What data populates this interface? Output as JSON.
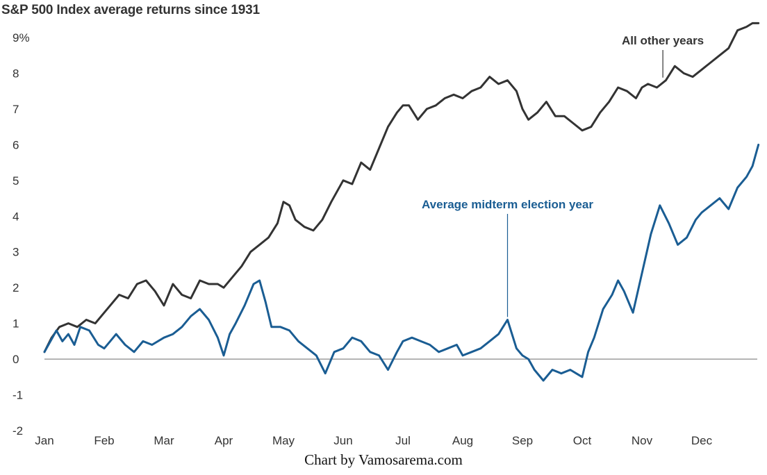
{
  "chart_data": {
    "type": "line",
    "title": "S&P 500 Index average returns since 1931",
    "source": "Chart by Vamosarema.com",
    "xlabel": "",
    "ylabel": "",
    "x_tick_labels": [
      "Jan",
      "Feb",
      "Mar",
      "Apr",
      "May",
      "Jun",
      "Jul",
      "Aug",
      "Sep",
      "Oct",
      "Nov",
      "Dec"
    ],
    "y_tick_labels": [
      "9%",
      "8",
      "7",
      "6",
      "5",
      "4",
      "3",
      "2",
      "1",
      "0",
      "-1",
      "-2"
    ],
    "y_ticks": [
      9,
      8,
      7,
      6,
      5,
      4,
      3,
      2,
      1,
      0,
      -1,
      -2
    ],
    "ylim": [
      -2,
      9
    ],
    "xlim": [
      0,
      12
    ],
    "grid": false,
    "zero_line": true,
    "series": [
      {
        "name": "All other years",
        "color": "#333333",
        "x": [
          0.0,
          0.12,
          0.25,
          0.4,
          0.55,
          0.7,
          0.85,
          1.0,
          1.1,
          1.25,
          1.4,
          1.55,
          1.7,
          1.85,
          2.0,
          2.15,
          2.3,
          2.45,
          2.6,
          2.75,
          2.9,
          3.0,
          3.15,
          3.3,
          3.45,
          3.6,
          3.75,
          3.9,
          4.0,
          4.1,
          4.2,
          4.35,
          4.5,
          4.65,
          4.8,
          5.0,
          5.15,
          5.3,
          5.45,
          5.6,
          5.75,
          5.9,
          6.0,
          6.1,
          6.25,
          6.4,
          6.55,
          6.7,
          6.85,
          7.0,
          7.15,
          7.3,
          7.45,
          7.6,
          7.75,
          7.9,
          8.0,
          8.1,
          8.25,
          8.4,
          8.55,
          8.7,
          8.85,
          9.0,
          9.15,
          9.3,
          9.45,
          9.6,
          9.75,
          9.9,
          10.0,
          10.1,
          10.25,
          10.4,
          10.55,
          10.7,
          10.85,
          11.0,
          11.15,
          11.3,
          11.45,
          11.6,
          11.75,
          11.85,
          11.95
        ],
        "y": [
          0.2,
          0.6,
          0.9,
          1.0,
          0.9,
          1.1,
          1.0,
          1.3,
          1.5,
          1.8,
          1.7,
          2.1,
          2.2,
          1.9,
          1.5,
          2.1,
          1.8,
          1.7,
          2.2,
          2.1,
          2.1,
          2.0,
          2.3,
          2.6,
          3.0,
          3.2,
          3.4,
          3.8,
          4.4,
          4.3,
          3.9,
          3.7,
          3.6,
          3.9,
          4.4,
          5.0,
          4.9,
          5.5,
          5.3,
          5.9,
          6.5,
          6.9,
          7.1,
          7.1,
          6.7,
          7.0,
          7.1,
          7.3,
          7.4,
          7.3,
          7.5,
          7.6,
          7.9,
          7.7,
          7.8,
          7.5,
          7.0,
          6.7,
          6.9,
          7.2,
          6.8,
          6.8,
          6.6,
          6.4,
          6.5,
          6.9,
          7.2,
          7.6,
          7.5,
          7.3,
          7.6,
          7.7,
          7.6,
          7.8,
          8.2,
          8.0,
          7.9,
          8.1,
          8.3,
          8.5,
          8.7,
          9.2,
          9.3,
          9.4,
          9.4
        ]
      },
      {
        "name": "Average midterm election year",
        "color": "#1a5d93",
        "x": [
          0.0,
          0.1,
          0.2,
          0.3,
          0.4,
          0.5,
          0.6,
          0.75,
          0.9,
          1.0,
          1.1,
          1.2,
          1.35,
          1.5,
          1.65,
          1.8,
          2.0,
          2.15,
          2.3,
          2.45,
          2.6,
          2.75,
          2.9,
          3.0,
          3.1,
          3.2,
          3.35,
          3.5,
          3.6,
          3.7,
          3.8,
          3.95,
          4.1,
          4.25,
          4.4,
          4.55,
          4.7,
          4.85,
          5.0,
          5.15,
          5.3,
          5.45,
          5.6,
          5.75,
          5.9,
          6.0,
          6.15,
          6.3,
          6.45,
          6.6,
          6.75,
          6.9,
          7.0,
          7.15,
          7.3,
          7.45,
          7.6,
          7.75,
          7.9,
          8.0,
          8.1,
          8.2,
          8.35,
          8.5,
          8.65,
          8.8,
          8.9,
          9.0,
          9.1,
          9.2,
          9.35,
          9.5,
          9.6,
          9.7,
          9.85,
          10.0,
          10.15,
          10.3,
          10.45,
          10.6,
          10.75,
          10.9,
          11.0,
          11.15,
          11.3,
          11.45,
          11.6,
          11.75,
          11.85,
          11.95
        ],
        "y": [
          0.2,
          0.5,
          0.8,
          0.5,
          0.7,
          0.4,
          0.9,
          0.8,
          0.4,
          0.3,
          0.5,
          0.7,
          0.4,
          0.2,
          0.5,
          0.4,
          0.6,
          0.7,
          0.9,
          1.2,
          1.4,
          1.1,
          0.6,
          0.1,
          0.7,
          1.0,
          1.5,
          2.1,
          2.2,
          1.6,
          0.9,
          0.9,
          0.8,
          0.5,
          0.3,
          0.1,
          -0.4,
          0.2,
          0.3,
          0.6,
          0.5,
          0.2,
          0.1,
          -0.3,
          0.2,
          0.5,
          0.6,
          0.5,
          0.4,
          0.2,
          0.3,
          0.4,
          0.1,
          0.2,
          0.3,
          0.5,
          0.7,
          1.1,
          0.3,
          0.1,
          0.0,
          -0.3,
          -0.6,
          -0.3,
          -0.4,
          -0.3,
          -0.4,
          -0.5,
          0.2,
          0.6,
          1.4,
          1.8,
          2.2,
          1.9,
          1.3,
          2.4,
          3.5,
          4.3,
          3.8,
          3.2,
          3.4,
          3.9,
          4.1,
          4.3,
          4.5,
          4.2,
          4.8,
          5.1,
          5.4,
          6.0
        ]
      }
    ],
    "annotations": [
      {
        "text": "All other years",
        "series": "All other years",
        "x": 10.35,
        "y": 7.8
      },
      {
        "text": "Average midterm election year",
        "series": "Average midterm election year",
        "x": 7.75,
        "y": 1.1
      }
    ]
  }
}
